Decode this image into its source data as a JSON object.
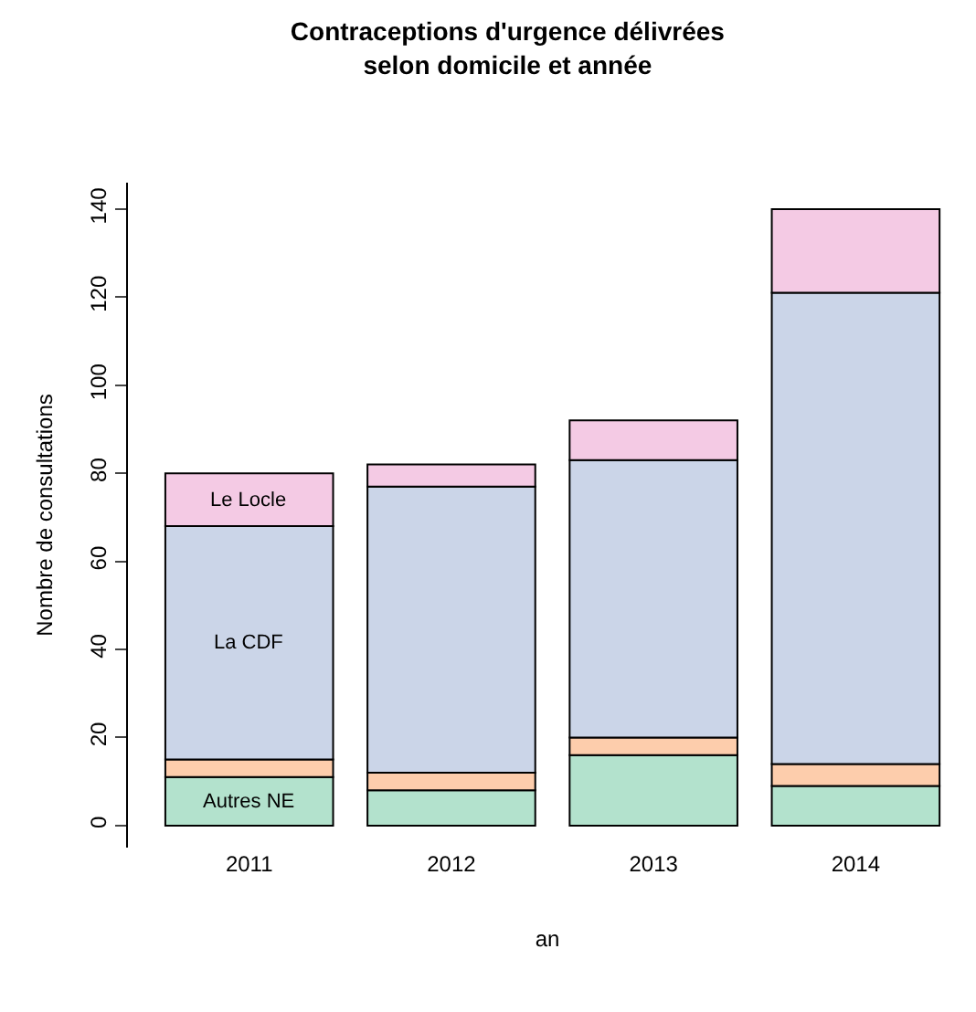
{
  "chart_data": {
    "type": "bar",
    "title": "Contraceptions d'urgence délivrées\nselon domicile et année",
    "xlabel": "an",
    "ylabel": "Nombre de consultations",
    "categories": [
      "2011",
      "2012",
      "2013",
      "2014"
    ],
    "stacked": true,
    "series": [
      {
        "name": "Autres NE",
        "color": "#b3e2cd",
        "values": [
          11,
          8,
          16,
          9
        ]
      },
      {
        "color": "#fdcdac",
        "values": [
          4,
          4,
          4,
          5
        ]
      },
      {
        "name": "La CDF",
        "color": "#cbd5e8",
        "values": [
          53,
          65,
          63,
          107
        ]
      },
      {
        "name": "Le Locle",
        "color": "#f4cae4",
        "values": [
          12,
          5,
          9,
          19
        ]
      }
    ],
    "ylim": [
      -5,
      146
    ],
    "yticks": [
      0,
      20,
      40,
      60,
      80,
      100,
      120,
      140
    ],
    "grid": false,
    "legend": false
  }
}
